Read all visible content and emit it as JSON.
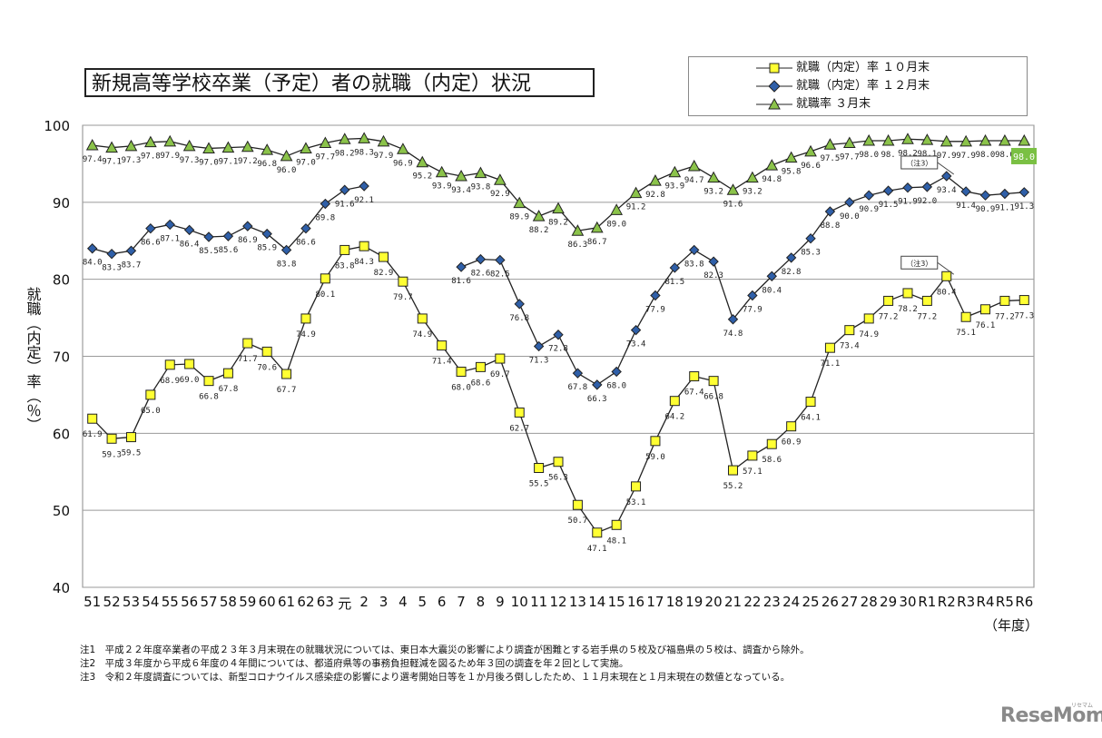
{
  "chart_data": {
    "type": "line",
    "title": "新規高等学校卒業（予定）者の就職（内定）状況",
    "ylabel": "就職（内定）率（％）",
    "xlabel": "（年度）",
    "ylim": [
      40,
      100
    ],
    "yticks": [
      "40",
      "50",
      "60",
      "70",
      "80",
      "90",
      "100"
    ],
    "grid": true,
    "legend_position": "top-right",
    "categories": [
      "51",
      "52",
      "53",
      "54",
      "55",
      "56",
      "57",
      "58",
      "59",
      "60",
      "61",
      "62",
      "63",
      "元",
      "2",
      "3",
      "4",
      "5",
      "6",
      "7",
      "8",
      "9",
      "10",
      "11",
      "12",
      "13",
      "14",
      "15",
      "16",
      "17",
      "18",
      "19",
      "20",
      "21",
      "22",
      "23",
      "24",
      "25",
      "26",
      "27",
      "28",
      "29",
      "30",
      "R1",
      "R2",
      "R3",
      "R4",
      "R5",
      "R6"
    ],
    "series": [
      {
        "name": "就職（内定）率 １０月末",
        "marker": "square",
        "color": "#ffff33",
        "values": [
          61.9,
          59.3,
          59.5,
          65.0,
          68.9,
          69.0,
          66.8,
          67.8,
          71.7,
          70.6,
          67.7,
          74.9,
          80.1,
          83.8,
          84.3,
          82.9,
          79.7,
          74.9,
          71.4,
          68.0,
          68.6,
          69.7,
          62.7,
          55.5,
          56.3,
          50.7,
          47.1,
          48.1,
          53.1,
          59.0,
          64.2,
          67.4,
          66.8,
          55.2,
          57.1,
          58.6,
          60.9,
          64.1,
          71.1,
          73.4,
          74.9,
          77.2,
          78.2,
          77.2,
          80.4,
          75.1,
          76.1,
          77.2,
          77.3
        ],
        "labels": [
          "61.9",
          "59.3",
          "59.5",
          "65.0",
          "68.9",
          "69.0",
          "66.8",
          "67.8",
          "71.7",
          "70.6",
          "67.7",
          "74.9",
          "80.1",
          "83.8",
          "84.3",
          "82.9",
          "79.7",
          "74.9",
          "71.4",
          "68.0",
          "68.6",
          "69.7",
          "62.7",
          "55.5",
          "56.3",
          "50.7",
          "47.1",
          "48.1",
          "53.1",
          "59.0",
          "64.2",
          "67.4",
          "66.8",
          "55.2",
          "57.1",
          "58.6",
          "60.9",
          "64.1",
          "71.1",
          "73.4",
          "74.9",
          "77.2",
          "78.2",
          "77.2",
          "80.4",
          "75.1",
          "76.1",
          "77.2",
          "77.3"
        ]
      },
      {
        "name": "就職（内定）率 １２月末",
        "marker": "diamond",
        "color": "#2f5fa8",
        "values": [
          84.0,
          83.3,
          83.7,
          86.6,
          87.1,
          86.4,
          85.5,
          85.6,
          86.9,
          85.9,
          83.8,
          86.6,
          89.8,
          91.6,
          92.1,
          null,
          null,
          null,
          null,
          81.6,
          82.6,
          82.5,
          76.8,
          71.3,
          72.8,
          67.8,
          66.3,
          68.0,
          73.4,
          77.9,
          81.5,
          83.8,
          82.3,
          74.8,
          77.9,
          80.4,
          82.8,
          85.3,
          88.8,
          90.0,
          90.9,
          91.5,
          91.9,
          92.0,
          93.4,
          91.4,
          90.9,
          91.1,
          91.3
        ],
        "labels": [
          "84.0",
          "83.3",
          "83.7",
          "86.6",
          "87.1",
          "86.4",
          "85.5",
          "85.6",
          "86.9",
          "85.9",
          "83.8",
          "86.6",
          "89.8",
          "91.6",
          "92.1",
          null,
          null,
          null,
          null,
          "81.6",
          "82.6",
          "82.5",
          "76.8",
          "71.3",
          "72.8",
          "67.8",
          "66.3",
          "68.0",
          "73.4",
          "77.9",
          "81.5",
          "83.8",
          "82.3",
          "74.8",
          "77.9",
          "80.4",
          "82.8",
          "85.3",
          "88.8",
          "90.0",
          "90.9",
          "91.5",
          "91.9",
          "92.0",
          "93.4",
          "91.4",
          "90.9",
          "91.1",
          "91.3"
        ]
      },
      {
        "name": "就職率 ３月末",
        "marker": "triangle",
        "color": "#8bc34a",
        "values": [
          97.4,
          97.1,
          97.3,
          97.8,
          97.9,
          97.3,
          97.0,
          97.1,
          97.2,
          96.8,
          96.0,
          97.0,
          97.7,
          98.2,
          98.3,
          97.9,
          96.9,
          95.2,
          93.9,
          93.4,
          93.8,
          92.9,
          89.9,
          88.2,
          89.2,
          86.3,
          86.7,
          89.0,
          91.2,
          92.8,
          93.9,
          94.7,
          93.2,
          91.6,
          93.2,
          94.8,
          95.8,
          96.6,
          97.5,
          97.7,
          98.0,
          98.0,
          98.2,
          98.1,
          97.9,
          97.9,
          98.0,
          98.0,
          98.0
        ],
        "labels": [
          "97.4",
          "97.1",
          "97.3",
          "97.8",
          "97.9",
          "97.3",
          "97.0",
          "97.1",
          "97.2",
          "96.8",
          "96.0",
          "97.0",
          "97.7",
          "98.2",
          "98.3",
          "97.9",
          "96.9",
          "95.2",
          "93.9",
          "93.4",
          "93.8",
          "92.9",
          "89.9",
          "88.2",
          "89.2",
          "86.3",
          "86.7",
          "89.0",
          "91.2",
          "92.8",
          "93.9",
          "94.7",
          "93.2",
          "91.6",
          "93.2",
          "94.8",
          "95.8",
          "96.6",
          "97.5",
          "97.7",
          "98.0",
          "98.",
          "98.2",
          "98.1",
          "97.9",
          "97.9",
          "98.0",
          "98.0",
          "98.0"
        ]
      }
    ],
    "annotations": [
      {
        "text": "（注3）",
        "series": 1,
        "index": 44
      },
      {
        "text": "（注3）",
        "series": 0,
        "index": 44
      }
    ],
    "highlight_label": {
      "text": "98.0",
      "color": "#7ac043"
    }
  },
  "notes": [
    "注1　平成２２年度卒業者の平成２３年３月末現在の就職状況については、東日本大震災の影響により調査が困難とする岩手県の５校及び福島県の５校は、調査から除外。",
    "注2　平成３年度から平成６年度の４年間については、都道府県等の事務負担軽減を図るため年３回の調査を年２回として実施。",
    "注3　令和２年度調査については、新型コロナウイルス感染症の影響により選考開始日等を１か月後ろ倒ししたため、１１月末現在と１月末現在の数値となっている。"
  ],
  "watermark": "ReseMom",
  "watermark_sub": "リセマム"
}
